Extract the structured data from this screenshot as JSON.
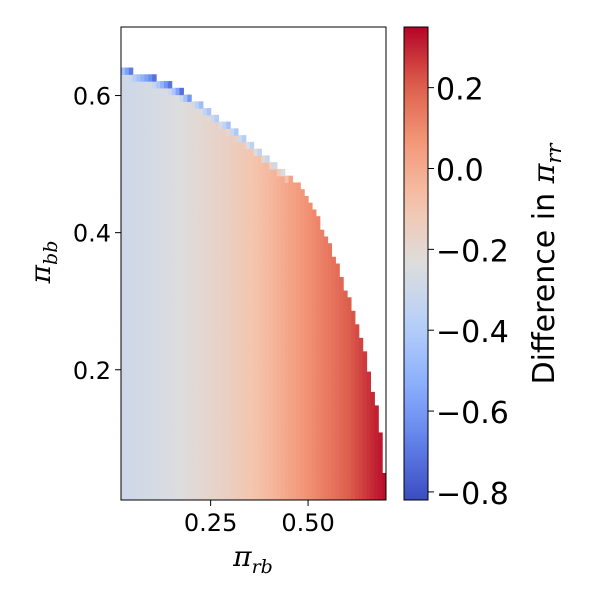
{
  "chart_data": {
    "type": "heatmap",
    "title": "",
    "xlabel": {
      "symbol": "π",
      "sub": "rb"
    },
    "ylabel": {
      "symbol": "π",
      "sub": "bb"
    },
    "xlim": [
      0.02,
      0.7
    ],
    "ylim": [
      0.01,
      0.7
    ],
    "xticks": [
      0.25,
      0.5
    ],
    "xtick_labels": [
      "0.25",
      "0.50"
    ],
    "yticks": [
      0.2,
      0.4,
      0.6
    ],
    "ytick_labels": [
      "0.2",
      "0.4",
      "0.6"
    ],
    "colorbar": {
      "label_text": "Difference in ",
      "label_symbol": "π",
      "label_sub": "rr",
      "colormap": "coolwarm",
      "vmin": -0.82,
      "vmax": 0.35,
      "ticks": [
        0.2,
        0.0,
        -0.2,
        -0.4,
        -0.6,
        -0.8
      ],
      "tick_labels": [
        "0.2",
        "0.0",
        "−0.2",
        "−0.4",
        "−0.6",
        "−0.8"
      ]
    },
    "grid": false,
    "boundary": [
      [
        0.02,
        0.645
      ],
      [
        0.05,
        0.636
      ],
      [
        0.1,
        0.628
      ],
      [
        0.15,
        0.616
      ],
      [
        0.2,
        0.598
      ],
      [
        0.25,
        0.576
      ],
      [
        0.3,
        0.555
      ],
      [
        0.35,
        0.532
      ],
      [
        0.4,
        0.508
      ],
      [
        0.45,
        0.485
      ],
      [
        0.5,
        0.452
      ],
      [
        0.52,
        0.428
      ],
      [
        0.55,
        0.39
      ],
      [
        0.58,
        0.345
      ],
      [
        0.61,
        0.295
      ],
      [
        0.64,
        0.24
      ],
      [
        0.66,
        0.185
      ],
      [
        0.68,
        0.13
      ],
      [
        0.69,
        0.08
      ],
      [
        0.7,
        0.01
      ]
    ],
    "value_profile": [
      [
        0.02,
        -0.3
      ],
      [
        0.15,
        -0.25
      ],
      [
        0.3,
        -0.15
      ],
      [
        0.4,
        -0.05
      ],
      [
        0.45,
        0.02
      ],
      [
        0.5,
        0.08
      ],
      [
        0.55,
        0.14
      ],
      [
        0.6,
        0.2
      ],
      [
        0.65,
        0.27
      ],
      [
        0.7,
        0.34
      ]
    ],
    "top_edge_value": -0.75
  }
}
